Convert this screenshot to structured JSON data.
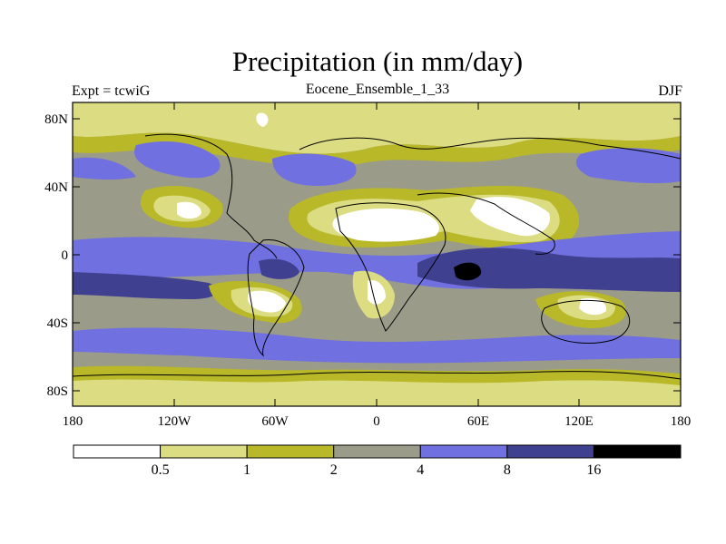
{
  "title": "Precipitation (in mm/day)",
  "left_string": "Expt = tcwiG",
  "center_string": "Eocene_Ensemble_1_33",
  "right_string": "DJF",
  "map": {
    "type": "filled-contour world map",
    "lon_range": [
      -180,
      180
    ],
    "lat_range": [
      -90,
      90
    ],
    "lat_tick_labels": [
      "80N",
      "40N",
      "0",
      "40S",
      "80S"
    ],
    "lon_tick_labels": [
      "180",
      "120W",
      "60W",
      "0",
      "60E",
      "120E",
      "180"
    ]
  },
  "colorbar": {
    "boundaries": [
      "0.5",
      "1",
      "2",
      "4",
      "8",
      "16"
    ],
    "colors": [
      "#ffffff",
      "#dcdc82",
      "#b8b828",
      "#9b9b8a",
      "#7070e0",
      "#404090",
      "#000000"
    ]
  }
}
